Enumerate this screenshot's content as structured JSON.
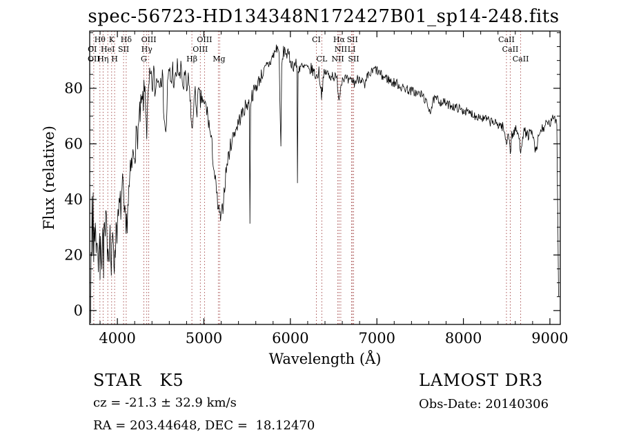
{
  "title": "spec-56723-HD134348N172427B01_sp14-248.fits",
  "footer": {
    "object_class": "STAR   K5",
    "survey": "LAMOST DR3",
    "cz": "cz = -21.3 ± 32.9 km/s",
    "obs_date": "Obs-Date: 20140306",
    "ra_dec": "RA = 203.44648, DEC =  18.12470"
  },
  "chart_data": {
    "type": "line",
    "title": "spec-56723-HD134348N172427B01_sp14-248.fits",
    "xlabel": "Wavelength (Å)",
    "ylabel": "Flux (relative)",
    "xlim": [
      3680,
      9120
    ],
    "ylim": [
      -5,
      100.6
    ],
    "xticks": [
      4000,
      5000,
      6000,
      7000,
      8000,
      9000
    ],
    "yticks": [
      0,
      20,
      40,
      60,
      80
    ],
    "x_minor_step": 200,
    "y_minor_step": 5,
    "grid": false,
    "line_color": "#000000",
    "spectral_line_color": "#a04040",
    "marked_wavelengths": [
      3727,
      3798,
      3835,
      3889,
      3934,
      3968,
      4072,
      4102,
      4305,
      4340,
      4363,
      4861,
      4959,
      5007,
      5167,
      5183,
      6300,
      6363,
      6548,
      6563,
      6583,
      6708,
      6717,
      6731,
      8498,
      8542,
      8662
    ],
    "line_labels": [
      {
        "text": "Hθ",
        "wl": 3798,
        "row": 1
      },
      {
        "text": "K",
        "wl": 3934,
        "row": 1
      },
      {
        "text": "Hδ",
        "wl": 4102,
        "row": 1
      },
      {
        "text": "OIII",
        "wl": 4363,
        "row": 1
      },
      {
        "text": "OIII",
        "wl": 5007,
        "row": 1
      },
      {
        "text": "CI",
        "wl": 6300,
        "row": 1
      },
      {
        "text": "Hα",
        "wl": 6563,
        "row": 1
      },
      {
        "text": "SII",
        "wl": 6717,
        "row": 1
      },
      {
        "text": "CaII",
        "wl": 8498,
        "row": 1
      },
      {
        "text": "OI",
        "wl": 3710,
        "row": 2
      },
      {
        "text": "HeI",
        "wl": 3889,
        "row": 2
      },
      {
        "text": "SII",
        "wl": 4072,
        "row": 2
      },
      {
        "text": "Hγ",
        "wl": 4340,
        "row": 2
      },
      {
        "text": "OIII",
        "wl": 4959,
        "row": 2
      },
      {
        "text": "NII",
        "wl": 6583,
        "row": 2
      },
      {
        "text": "LI",
        "wl": 6708,
        "row": 2
      },
      {
        "text": "CaII",
        "wl": 8542,
        "row": 2
      },
      {
        "text": "OII",
        "wl": 3727,
        "row": 3
      },
      {
        "text": "Hη",
        "wl": 3835,
        "row": 3
      },
      {
        "text": "H",
        "wl": 3968,
        "row": 3
      },
      {
        "text": "G",
        "wl": 4305,
        "row": 3
      },
      {
        "text": "Hβ",
        "wl": 4861,
        "row": 3
      },
      {
        "text": "Mg",
        "wl": 5175,
        "row": 3
      },
      {
        "text": "CL",
        "wl": 6363,
        "row": 3
      },
      {
        "text": "NII",
        "wl": 6548,
        "row": 3
      },
      {
        "text": "SII",
        "wl": 6731,
        "row": 3
      },
      {
        "text": "CaII",
        "wl": 8662,
        "row": 3
      }
    ],
    "spectrum": {
      "envelope": [
        [
          3690,
          3
        ],
        [
          3696,
          28
        ],
        [
          3702,
          12
        ],
        [
          3708,
          38
        ],
        [
          3714,
          20
        ],
        [
          3720,
          44
        ],
        [
          3726,
          18
        ],
        [
          3733,
          34
        ],
        [
          3740,
          24
        ],
        [
          3750,
          32
        ],
        [
          3760,
          20
        ],
        [
          3770,
          28
        ],
        [
          3780,
          17
        ],
        [
          3790,
          26
        ],
        [
          3800,
          15
        ],
        [
          3810,
          27
        ],
        [
          3820,
          20
        ],
        [
          3830,
          29
        ],
        [
          3840,
          18
        ],
        [
          3850,
          31
        ],
        [
          3860,
          24
        ],
        [
          3870,
          34
        ],
        [
          3880,
          22
        ],
        [
          3890,
          27
        ],
        [
          3900,
          19
        ],
        [
          3910,
          30
        ],
        [
          3920,
          24
        ],
        [
          3930,
          13
        ],
        [
          3940,
          22
        ],
        [
          3950,
          29
        ],
        [
          3960,
          21
        ],
        [
          3970,
          16
        ],
        [
          3980,
          27
        ],
        [
          3990,
          33
        ],
        [
          4000,
          28
        ],
        [
          4020,
          36
        ],
        [
          4040,
          38
        ],
        [
          4060,
          44
        ],
        [
          4080,
          34
        ],
        [
          4100,
          27
        ],
        [
          4120,
          38
        ],
        [
          4150,
          48
        ],
        [
          4180,
          55
        ],
        [
          4210,
          60
        ],
        [
          4240,
          65
        ],
        [
          4270,
          72
        ],
        [
          4300,
          76
        ],
        [
          4320,
          80
        ],
        [
          4340,
          65
        ],
        [
          4360,
          78
        ],
        [
          4380,
          84
        ],
        [
          4400,
          80
        ],
        [
          4420,
          85
        ],
        [
          4440,
          78
        ],
        [
          4460,
          86
        ],
        [
          4480,
          82
        ],
        [
          4500,
          87
        ],
        [
          4520,
          83
        ],
        [
          4540,
          72
        ],
        [
          4560,
          62
        ],
        [
          4580,
          80
        ],
        [
          4600,
          86
        ],
        [
          4620,
          82
        ],
        [
          4640,
          87
        ],
        [
          4660,
          80
        ],
        [
          4680,
          85
        ],
        [
          4700,
          88
        ],
        [
          4720,
          83
        ],
        [
          4740,
          87
        ],
        [
          4760,
          80
        ],
        [
          4780,
          84
        ],
        [
          4800,
          79
        ],
        [
          4820,
          82
        ],
        [
          4840,
          78
        ],
        [
          4861,
          63
        ],
        [
          4880,
          74
        ],
        [
          4900,
          77
        ],
        [
          4920,
          73
        ],
        [
          4940,
          78
        ],
        [
          4960,
          75
        ],
        [
          4980,
          77
        ],
        [
          5000,
          73
        ],
        [
          5020,
          74
        ],
        [
          5040,
          71
        ],
        [
          5060,
          67
        ],
        [
          5080,
          62
        ],
        [
          5100,
          57
        ],
        [
          5120,
          50
        ],
        [
          5140,
          44
        ],
        [
          5160,
          38
        ],
        [
          5180,
          34
        ],
        [
          5200,
          33
        ],
        [
          5220,
          38
        ],
        [
          5240,
          45
        ],
        [
          5260,
          51
        ],
        [
          5280,
          55
        ],
        [
          5300,
          58
        ],
        [
          5320,
          61
        ],
        [
          5340,
          63
        ],
        [
          5360,
          65
        ],
        [
          5380,
          66
        ],
        [
          5400,
          68
        ],
        [
          5430,
          70
        ],
        [
          5460,
          72
        ],
        [
          5490,
          74
        ],
        [
          5515,
          75
        ],
        [
          5525,
          74
        ],
        [
          5532,
          30
        ],
        [
          5540,
          75
        ],
        [
          5550,
          77
        ],
        [
          5580,
          79
        ],
        [
          5610,
          81
        ],
        [
          5640,
          83
        ],
        [
          5670,
          85
        ],
        [
          5700,
          86
        ],
        [
          5730,
          88
        ],
        [
          5760,
          89
        ],
        [
          5790,
          91
        ],
        [
          5820,
          93
        ],
        [
          5850,
          95
        ],
        [
          5870,
          92
        ],
        [
          5890,
          57
        ],
        [
          5900,
          88
        ],
        [
          5920,
          93
        ],
        [
          5940,
          94
        ],
        [
          5960,
          92
        ],
        [
          5980,
          92
        ],
        [
          6000,
          90
        ],
        [
          6030,
          88
        ],
        [
          6060,
          89
        ],
        [
          6075,
          88
        ],
        [
          6082,
          45
        ],
        [
          6090,
          87
        ],
        [
          6120,
          88
        ],
        [
          6150,
          87
        ],
        [
          6180,
          88
        ],
        [
          6210,
          86
        ],
        [
          6240,
          87
        ],
        [
          6270,
          86
        ],
        [
          6300,
          84
        ],
        [
          6330,
          86
        ],
        [
          6360,
          78
        ],
        [
          6390,
          85
        ],
        [
          6420,
          86
        ],
        [
          6450,
          84
        ],
        [
          6480,
          85
        ],
        [
          6510,
          84
        ],
        [
          6540,
          83
        ],
        [
          6563,
          76
        ],
        [
          6590,
          83
        ],
        [
          6620,
          84
        ],
        [
          6650,
          83
        ],
        [
          6680,
          82
        ],
        [
          6710,
          83
        ],
        [
          6740,
          82
        ],
        [
          6770,
          83
        ],
        [
          6800,
          84
        ],
        [
          6830,
          83
        ],
        [
          6860,
          80
        ],
        [
          6890,
          84
        ],
        [
          6920,
          85
        ],
        [
          6950,
          86
        ],
        [
          6980,
          87
        ],
        [
          7010,
          86
        ],
        [
          7040,
          85
        ],
        [
          7070,
          84
        ],
        [
          7100,
          84
        ],
        [
          7140,
          83
        ],
        [
          7180,
          82
        ],
        [
          7220,
          82
        ],
        [
          7260,
          81
        ],
        [
          7300,
          80
        ],
        [
          7340,
          80
        ],
        [
          7380,
          79
        ],
        [
          7420,
          79
        ],
        [
          7460,
          78
        ],
        [
          7500,
          78
        ],
        [
          7540,
          77
        ],
        [
          7580,
          74
        ],
        [
          7620,
          72
        ],
        [
          7660,
          76
        ],
        [
          7700,
          76
        ],
        [
          7740,
          75
        ],
        [
          7780,
          75
        ],
        [
          7820,
          74
        ],
        [
          7860,
          74
        ],
        [
          7900,
          73
        ],
        [
          7940,
          73
        ],
        [
          7980,
          72
        ],
        [
          8020,
          72
        ],
        [
          8060,
          71
        ],
        [
          8100,
          71
        ],
        [
          8140,
          70
        ],
        [
          8180,
          70
        ],
        [
          8220,
          69
        ],
        [
          8260,
          69
        ],
        [
          8300,
          68
        ],
        [
          8340,
          68
        ],
        [
          8380,
          67
        ],
        [
          8420,
          67
        ],
        [
          8460,
          66
        ],
        [
          8498,
          60
        ],
        [
          8520,
          65
        ],
        [
          8542,
          57
        ],
        [
          8560,
          63
        ],
        [
          8600,
          65
        ],
        [
          8630,
          64
        ],
        [
          8662,
          58
        ],
        [
          8690,
          64
        ],
        [
          8720,
          64
        ],
        [
          8750,
          63
        ],
        [
          8780,
          64
        ],
        [
          8810,
          62
        ],
        [
          8840,
          56
        ],
        [
          8870,
          63
        ],
        [
          8900,
          65
        ],
        [
          8930,
          66
        ],
        [
          8960,
          67
        ],
        [
          8990,
          67
        ],
        [
          9020,
          68
        ],
        [
          9050,
          70
        ],
        [
          9080,
          68
        ],
        [
          9100,
          5
        ]
      ],
      "noise": {
        "seed": 7,
        "step": 6,
        "amplitude": [
          [
            3680,
            8
          ],
          [
            4150,
            6.5
          ],
          [
            4500,
            5
          ],
          [
            4900,
            4
          ],
          [
            5100,
            3.5
          ],
          [
            5400,
            2.8
          ],
          [
            5700,
            2.5
          ],
          [
            6100,
            2.2
          ],
          [
            6600,
            2
          ],
          [
            7200,
            1.8
          ],
          [
            7800,
            1.6
          ],
          [
            8300,
            1.7
          ],
          [
            8700,
            2
          ],
          [
            9120,
            1.8
          ]
        ]
      }
    }
  }
}
